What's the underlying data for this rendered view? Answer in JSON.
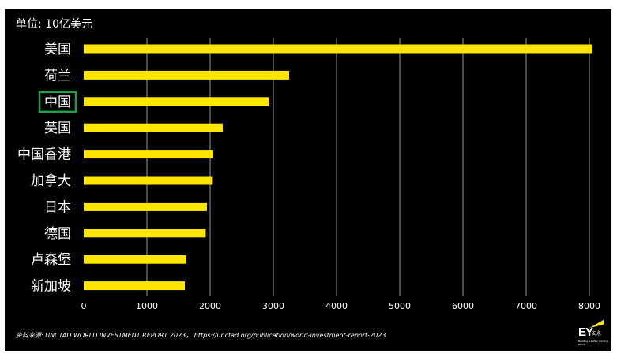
{
  "unit_label": "单位: 10亿美元",
  "source_prefix": "资料来源:",
  "source_text": " UNCTAD WORLD INVESTMENT REPORT 2023， https://unctad.org/publication/world-investment-report-2023",
  "logo": {
    "mark": "EY",
    "cn": "安永",
    "tagline": "Building a better working world"
  },
  "colors": {
    "background": "#000000",
    "bar": "#ffe600",
    "text": "#ffffff",
    "grid": "#bfbfbf",
    "highlight_box": "#1fa04a",
    "logo_beam": "#ffe600"
  },
  "chart_data": {
    "type": "bar",
    "orientation": "horizontal",
    "categories": [
      "美国",
      "荷兰",
      "中国",
      "英国",
      "中国香港",
      "加拿大",
      "日本",
      "德国",
      "卢森堡",
      "新加坡"
    ],
    "values": [
      8050,
      3250,
      2930,
      2200,
      2050,
      2030,
      1950,
      1930,
      1620,
      1600
    ],
    "highlighted_category": "中国",
    "xlim": [
      0,
      8000
    ],
    "xticks": [
      0,
      1000,
      2000,
      3000,
      4000,
      5000,
      6000,
      7000,
      8000
    ],
    "grid": true,
    "title": "",
    "xlabel": "",
    "ylabel": ""
  }
}
